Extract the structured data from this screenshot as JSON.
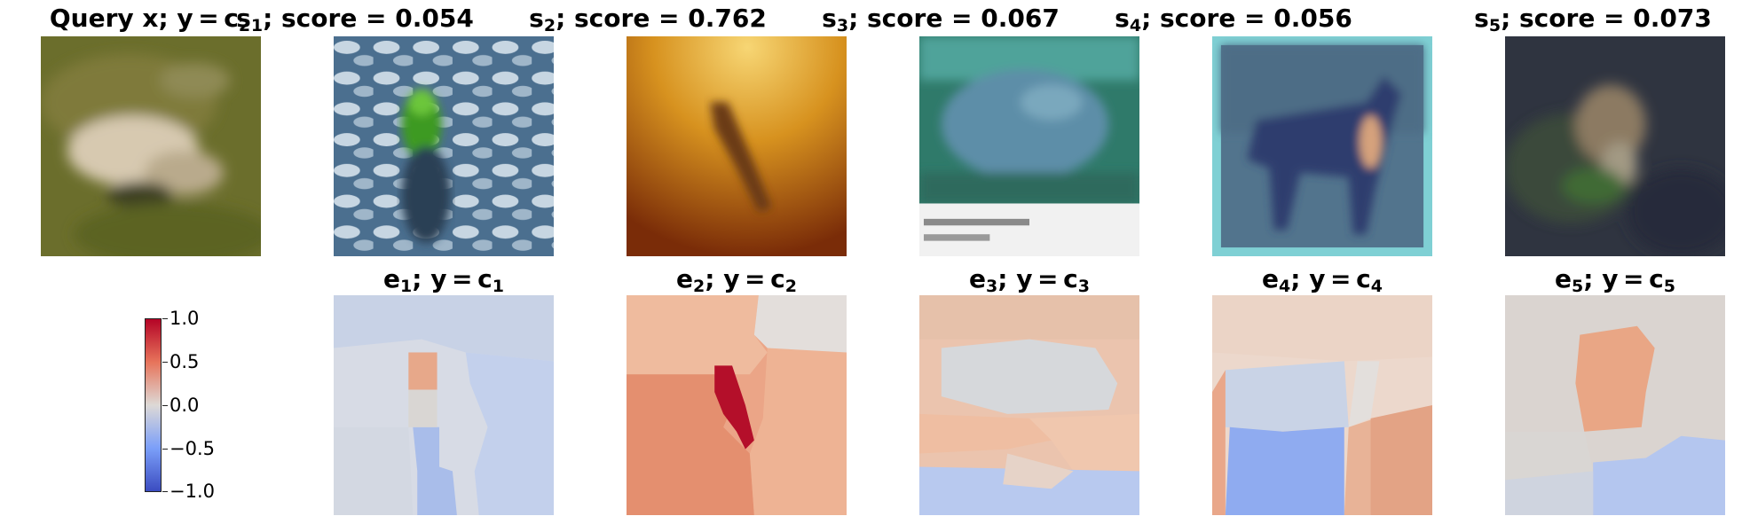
{
  "row1": [
    {
      "name": "query",
      "pre": "Query x; y = c",
      "sub": "2",
      "post": ""
    },
    {
      "name": "s1",
      "pre": "s",
      "sub": "1",
      "post": "; score = 0.054"
    },
    {
      "name": "s2",
      "pre": "s",
      "sub": "2",
      "post": "; score = 0.762"
    },
    {
      "name": "s3",
      "pre": "s",
      "sub": "3",
      "post": "; score = 0.067"
    },
    {
      "name": "s4",
      "pre": "s",
      "sub": "4",
      "post": "; score = 0.056"
    },
    {
      "name": "s5",
      "pre": "s",
      "sub": "5",
      "post": "; score = 0.073"
    }
  ],
  "row2": [
    {
      "name": "e1",
      "pre": "e",
      "sub": "1",
      "mid": "; y = c",
      "sub2": "1"
    },
    {
      "name": "e2",
      "pre": "e",
      "sub": "2",
      "mid": "; y = c",
      "sub2": "2"
    },
    {
      "name": "e3",
      "pre": "e",
      "sub": "3",
      "mid": "; y = c",
      "sub2": "3"
    },
    {
      "name": "e4",
      "pre": "e",
      "sub": "4",
      "mid": "; y = c",
      "sub2": "4"
    },
    {
      "name": "e5",
      "pre": "e",
      "sub": "5",
      "mid": "; y = c",
      "sub2": "5"
    }
  ],
  "colorbar": {
    "ticks": [
      "1.0",
      "0.5",
      "0.0",
      "−0.5",
      "−1.0"
    ],
    "colormap": [
      "#b40426",
      "#ddd9d6",
      "#3b4cc0"
    ]
  }
}
